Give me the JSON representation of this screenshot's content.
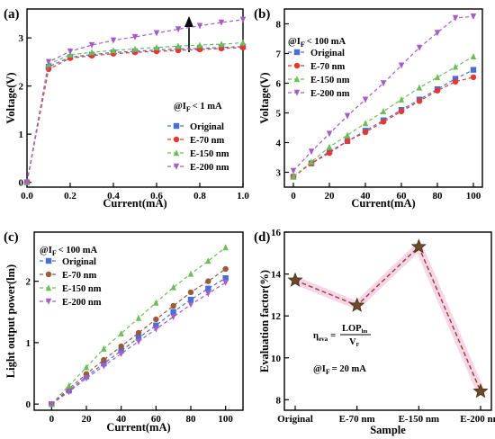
{
  "chart_data": [
    {
      "panel": "(a)",
      "type": "line",
      "xlabel": "Current(mA)",
      "ylabel": "Voltage(V)",
      "xlim": [
        0,
        1.0
      ],
      "ylim": [
        -0.1,
        3.6
      ],
      "xticks": [
        "0.0",
        "0.2",
        "0.4",
        "0.6",
        "0.8",
        "1.0"
      ],
      "yticks": [
        "0",
        "1",
        "2",
        "3"
      ],
      "annotation_main": "@I",
      "annotation_sub": "F",
      "annotation_rest": "< 1 mA",
      "legend_position": "lower-right",
      "arrow": "upward arrow near x=0.8",
      "x": [
        0,
        0.1,
        0.2,
        0.3,
        0.4,
        0.5,
        0.6,
        0.7,
        0.8,
        0.9,
        1.0
      ],
      "series": [
        {
          "name": "Original",
          "color": "#4a6fd4",
          "marker": "square",
          "values": [
            0,
            2.4,
            2.6,
            2.65,
            2.7,
            2.72,
            2.75,
            2.77,
            2.78,
            2.8,
            2.82
          ]
        },
        {
          "name": "E-70 nm",
          "color": "#e5392f",
          "marker": "circle",
          "values": [
            0,
            2.35,
            2.58,
            2.63,
            2.67,
            2.7,
            2.72,
            2.74,
            2.76,
            2.78,
            2.8
          ]
        },
        {
          "name": "E-150 nm",
          "color": "#6cbf56",
          "marker": "triangle-up",
          "values": [
            0,
            2.45,
            2.65,
            2.7,
            2.74,
            2.77,
            2.8,
            2.83,
            2.85,
            2.87,
            2.9
          ]
        },
        {
          "name": "E-200 nm",
          "color": "#a35cc8",
          "marker": "triangle-down",
          "values": [
            0,
            2.5,
            2.72,
            2.85,
            2.95,
            3.02,
            3.1,
            3.18,
            3.25,
            3.32,
            3.38
          ]
        }
      ]
    },
    {
      "panel": "(b)",
      "type": "line",
      "xlabel": "Current(mA)",
      "ylabel": "Voltage(V)",
      "xlim": [
        -5,
        105
      ],
      "ylim": [
        2.5,
        8.5
      ],
      "xticks": [
        "0",
        "20",
        "40",
        "60",
        "80",
        "100"
      ],
      "yticks": [
        "3",
        "4",
        "5",
        "6",
        "7",
        "8"
      ],
      "annotation_main": "@I",
      "annotation_sub": "F",
      "annotation_rest": "< 100 mA",
      "legend_position": "upper-left",
      "x": [
        0,
        10,
        20,
        30,
        40,
        50,
        60,
        70,
        80,
        90,
        100
      ],
      "series": [
        {
          "name": "Original",
          "color": "#4a6fd4",
          "marker": "square",
          "values": [
            2.85,
            3.3,
            3.7,
            4.05,
            4.4,
            4.75,
            5.1,
            5.45,
            5.8,
            6.15,
            6.45
          ]
        },
        {
          "name": "E-70 nm",
          "color": "#e5392f",
          "marker": "circle",
          "values": [
            2.85,
            3.3,
            3.65,
            4.05,
            4.35,
            4.7,
            5.05,
            5.4,
            5.75,
            6.05,
            6.2
          ]
        },
        {
          "name": "E-150 nm",
          "color": "#6cbf56",
          "marker": "triangle-up",
          "values": [
            2.85,
            3.35,
            3.85,
            4.25,
            4.65,
            5.05,
            5.45,
            5.85,
            6.2,
            6.55,
            6.9
          ]
        },
        {
          "name": "E-200 nm",
          "color": "#a35cc8",
          "marker": "triangle-down",
          "values": [
            3.05,
            3.7,
            4.3,
            4.9,
            5.45,
            6.0,
            6.6,
            7.2,
            7.7,
            8.2,
            8.25
          ]
        }
      ]
    },
    {
      "panel": "(c)",
      "type": "line",
      "xlabel": "Current(mA)",
      "ylabel": "Light output power(lm)",
      "xlim": [
        -10,
        110
      ],
      "ylim": [
        -0.1,
        2.8
      ],
      "xticks": [
        "0",
        "20",
        "40",
        "60",
        "80",
        "100"
      ],
      "yticks": [
        "0",
        "1",
        "2"
      ],
      "annotation_main": "@I",
      "annotation_sub": "F",
      "annotation_rest": "< 100 mA",
      "legend_position": "upper-left",
      "x": [
        0,
        10,
        20,
        30,
        40,
        50,
        60,
        70,
        80,
        90,
        100
      ],
      "series": [
        {
          "name": "Original",
          "color": "#4a6fd4",
          "marker": "square",
          "values": [
            0,
            0.22,
            0.45,
            0.66,
            0.87,
            1.08,
            1.28,
            1.5,
            1.7,
            1.88,
            2.05
          ]
        },
        {
          "name": "E-70 nm",
          "color": "#9a5a3c",
          "marker": "circle",
          "values": [
            0,
            0.25,
            0.49,
            0.72,
            0.94,
            1.16,
            1.38,
            1.6,
            1.82,
            2.0,
            2.2
          ]
        },
        {
          "name": "E-150 nm",
          "color": "#6cbf56",
          "marker": "triangle-up",
          "values": [
            0,
            0.3,
            0.6,
            0.9,
            1.15,
            1.4,
            1.65,
            1.9,
            2.12,
            2.33,
            2.55
          ]
        },
        {
          "name": "E-200 nm",
          "color": "#a35cc8",
          "marker": "triangle-down",
          "values": [
            0,
            0.2,
            0.42,
            0.62,
            0.82,
            1.02,
            1.22,
            1.42,
            1.62,
            1.8,
            1.98
          ]
        }
      ]
    },
    {
      "panel": "(d)",
      "type": "line",
      "xlabel": "Sample",
      "ylabel": "Evaluation factor(%)",
      "ylim": [
        7.5,
        16
      ],
      "yticks": [
        "8",
        "10",
        "12",
        "14",
        "16"
      ],
      "categories": [
        "Original",
        "E-70 nm",
        "E-150 nm",
        "E-200 nm"
      ],
      "values": [
        13.7,
        12.5,
        15.3,
        8.4
      ],
      "marker": "star",
      "marker_color": "#6b4a2a",
      "line_color": "#8b4a14",
      "formula_lhs": "η",
      "formula_lhs_sub": "eva",
      "formula_num": "LOP",
      "formula_num_sub": "lm",
      "formula_den": "V",
      "formula_den_sub": "F",
      "annotation_main": "@I",
      "annotation_sub": "F",
      "annotation_rest": "= 20 mA"
    }
  ]
}
